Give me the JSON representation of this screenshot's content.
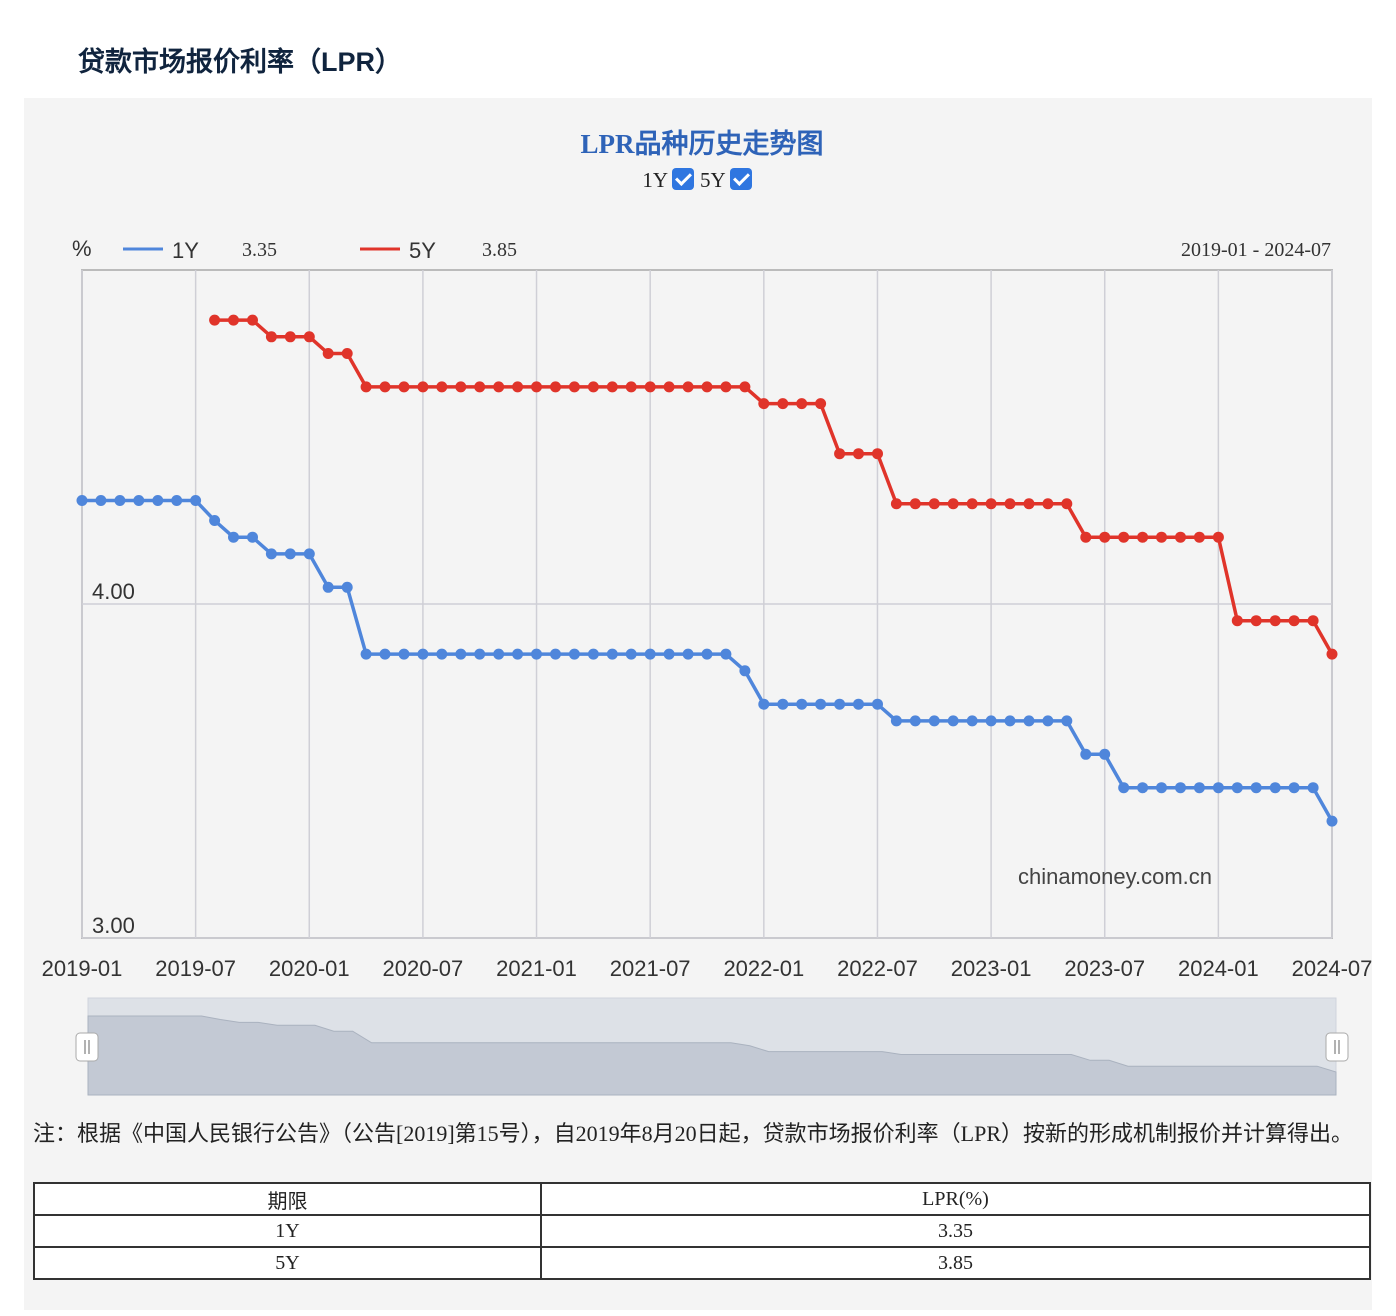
{
  "page_title": "贷款市场报价利率（LPR）",
  "chart_title": "LPR品种历史走势图",
  "toggles": [
    {
      "label": "1Y",
      "checked": true
    },
    {
      "label": "5Y",
      "checked": true
    }
  ],
  "unit": "%",
  "legend": [
    {
      "name": "1Y",
      "value": "3.35",
      "color": "#4f86db"
    },
    {
      "name": "5Y",
      "value": "3.85",
      "color": "#e0342a"
    }
  ],
  "date_range": "2019-01 - 2024-07",
  "watermark": "chinamoney.com.cn",
  "note": "注：根据《中国人民银行公告》（公告[2019]第15号），自2019年8月20日起，贷款市场报价利率（LPR）按新的形成机制报价并计算得出。",
  "table": {
    "headers": [
      "期限",
      "LPR(%)"
    ],
    "rows": [
      [
        "1Y",
        "3.35"
      ],
      [
        "5Y",
        "3.85"
      ]
    ]
  },
  "chart_data": {
    "type": "line",
    "x_ticks": [
      "2019-01",
      "2019-07",
      "2020-01",
      "2020-07",
      "2021-01",
      "2021-07",
      "2022-01",
      "2022-07",
      "2023-01",
      "2023-07",
      "2024-01",
      "2024-07"
    ],
    "y_ticks": [
      "3.00",
      "4.00"
    ],
    "ylim": [
      3.0,
      5.0
    ],
    "x_start": "2019-01",
    "x_end": "2024-07",
    "grid": true,
    "legend_position": "top-left",
    "series": [
      {
        "name": "1Y",
        "color": "#4f86db",
        "points": [
          [
            "2019-01",
            4.31
          ],
          [
            "2019-02",
            4.31
          ],
          [
            "2019-03",
            4.31
          ],
          [
            "2019-04",
            4.31
          ],
          [
            "2019-05",
            4.31
          ],
          [
            "2019-06",
            4.31
          ],
          [
            "2019-07",
            4.31
          ],
          [
            "2019-08",
            4.25
          ],
          [
            "2019-09",
            4.2
          ],
          [
            "2019-10",
            4.2
          ],
          [
            "2019-11",
            4.15
          ],
          [
            "2019-12",
            4.15
          ],
          [
            "2020-01",
            4.15
          ],
          [
            "2020-02",
            4.05
          ],
          [
            "2020-03",
            4.05
          ],
          [
            "2020-04",
            3.85
          ],
          [
            "2020-05",
            3.85
          ],
          [
            "2020-06",
            3.85
          ],
          [
            "2020-07",
            3.85
          ],
          [
            "2020-08",
            3.85
          ],
          [
            "2020-09",
            3.85
          ],
          [
            "2020-10",
            3.85
          ],
          [
            "2020-11",
            3.85
          ],
          [
            "2020-12",
            3.85
          ],
          [
            "2021-01",
            3.85
          ],
          [
            "2021-02",
            3.85
          ],
          [
            "2021-03",
            3.85
          ],
          [
            "2021-04",
            3.85
          ],
          [
            "2021-05",
            3.85
          ],
          [
            "2021-06",
            3.85
          ],
          [
            "2021-07",
            3.85
          ],
          [
            "2021-08",
            3.85
          ],
          [
            "2021-09",
            3.85
          ],
          [
            "2021-10",
            3.85
          ],
          [
            "2021-11",
            3.85
          ],
          [
            "2021-12",
            3.8
          ],
          [
            "2022-01",
            3.7
          ],
          [
            "2022-02",
            3.7
          ],
          [
            "2022-03",
            3.7
          ],
          [
            "2022-04",
            3.7
          ],
          [
            "2022-05",
            3.7
          ],
          [
            "2022-06",
            3.7
          ],
          [
            "2022-07",
            3.7
          ],
          [
            "2022-08",
            3.65
          ],
          [
            "2022-09",
            3.65
          ],
          [
            "2022-10",
            3.65
          ],
          [
            "2022-11",
            3.65
          ],
          [
            "2022-12",
            3.65
          ],
          [
            "2023-01",
            3.65
          ],
          [
            "2023-02",
            3.65
          ],
          [
            "2023-03",
            3.65
          ],
          [
            "2023-04",
            3.65
          ],
          [
            "2023-05",
            3.65
          ],
          [
            "2023-06",
            3.55
          ],
          [
            "2023-07",
            3.55
          ],
          [
            "2023-08",
            3.45
          ],
          [
            "2023-09",
            3.45
          ],
          [
            "2023-10",
            3.45
          ],
          [
            "2023-11",
            3.45
          ],
          [
            "2023-12",
            3.45
          ],
          [
            "2024-01",
            3.45
          ],
          [
            "2024-02",
            3.45
          ],
          [
            "2024-03",
            3.45
          ],
          [
            "2024-04",
            3.45
          ],
          [
            "2024-05",
            3.45
          ],
          [
            "2024-06",
            3.45
          ],
          [
            "2024-07",
            3.35
          ]
        ]
      },
      {
        "name": "5Y",
        "color": "#e0342a",
        "points": [
          [
            "2019-08",
            4.85
          ],
          [
            "2019-09",
            4.85
          ],
          [
            "2019-10",
            4.85
          ],
          [
            "2019-11",
            4.8
          ],
          [
            "2019-12",
            4.8
          ],
          [
            "2020-01",
            4.8
          ],
          [
            "2020-02",
            4.75
          ],
          [
            "2020-03",
            4.75
          ],
          [
            "2020-04",
            4.65
          ],
          [
            "2020-05",
            4.65
          ],
          [
            "2020-06",
            4.65
          ],
          [
            "2020-07",
            4.65
          ],
          [
            "2020-08",
            4.65
          ],
          [
            "2020-09",
            4.65
          ],
          [
            "2020-10",
            4.65
          ],
          [
            "2020-11",
            4.65
          ],
          [
            "2020-12",
            4.65
          ],
          [
            "2021-01",
            4.65
          ],
          [
            "2021-02",
            4.65
          ],
          [
            "2021-03",
            4.65
          ],
          [
            "2021-04",
            4.65
          ],
          [
            "2021-05",
            4.65
          ],
          [
            "2021-06",
            4.65
          ],
          [
            "2021-07",
            4.65
          ],
          [
            "2021-08",
            4.65
          ],
          [
            "2021-09",
            4.65
          ],
          [
            "2021-10",
            4.65
          ],
          [
            "2021-11",
            4.65
          ],
          [
            "2021-12",
            4.65
          ],
          [
            "2022-01",
            4.6
          ],
          [
            "2022-02",
            4.6
          ],
          [
            "2022-03",
            4.6
          ],
          [
            "2022-04",
            4.6
          ],
          [
            "2022-05",
            4.45
          ],
          [
            "2022-06",
            4.45
          ],
          [
            "2022-07",
            4.45
          ],
          [
            "2022-08",
            4.3
          ],
          [
            "2022-09",
            4.3
          ],
          [
            "2022-10",
            4.3
          ],
          [
            "2022-11",
            4.3
          ],
          [
            "2022-12",
            4.3
          ],
          [
            "2023-01",
            4.3
          ],
          [
            "2023-02",
            4.3
          ],
          [
            "2023-03",
            4.3
          ],
          [
            "2023-04",
            4.3
          ],
          [
            "2023-05",
            4.3
          ],
          [
            "2023-06",
            4.2
          ],
          [
            "2023-07",
            4.2
          ],
          [
            "2023-08",
            4.2
          ],
          [
            "2023-09",
            4.2
          ],
          [
            "2023-10",
            4.2
          ],
          [
            "2023-11",
            4.2
          ],
          [
            "2023-12",
            4.2
          ],
          [
            "2024-01",
            4.2
          ],
          [
            "2024-02",
            3.95
          ],
          [
            "2024-03",
            3.95
          ],
          [
            "2024-04",
            3.95
          ],
          [
            "2024-05",
            3.95
          ],
          [
            "2024-06",
            3.95
          ],
          [
            "2024-07",
            3.85
          ]
        ]
      }
    ]
  }
}
